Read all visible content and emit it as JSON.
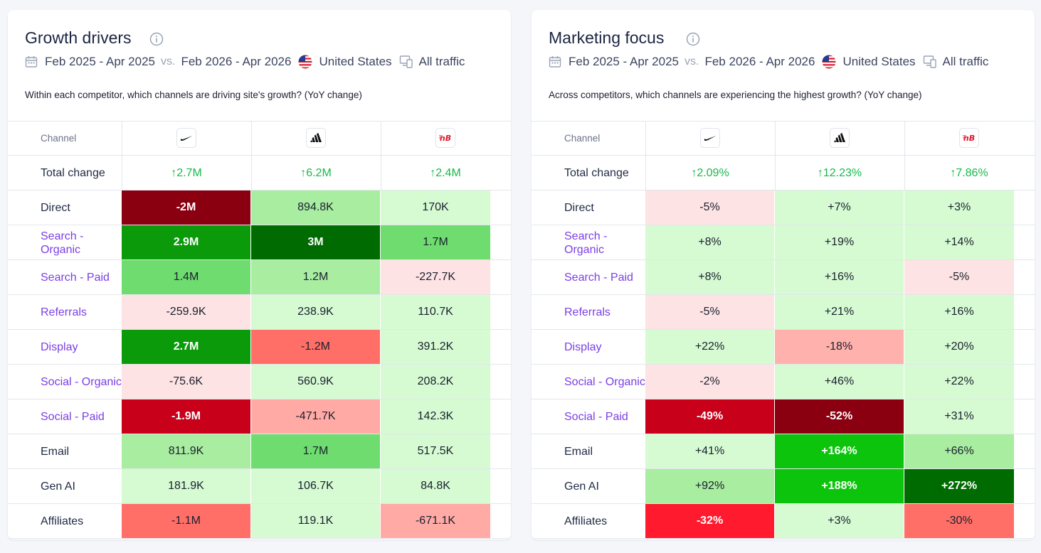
{
  "cards": [
    {
      "title": "Growth drivers",
      "filters": {
        "period_a": "Feb 2025 - Apr 2025",
        "vs": "vs.",
        "period_b": "Feb 2026 - Apr 2026",
        "country": "United States",
        "traffic": "All traffic"
      },
      "subtitle": "Within each competitor, which channels are driving site's growth? (YoY change)",
      "table": {
        "channel_header": "Channel",
        "competitors": [
          "nike-logo",
          "adidas-logo",
          "new-balance-logo"
        ],
        "total_label": "Total change",
        "totals": [
          "↑2.7M",
          "↑6.2M",
          "↑2.4M"
        ],
        "rows": [
          {
            "label": "Direct",
            "link": false,
            "values": [
              "-2M",
              "894.8K",
              "170K"
            ],
            "colors": [
              "#8b0010",
              "#a8eda0",
              "#d6fbd2"
            ]
          },
          {
            "label": "Search - Organic",
            "link": true,
            "values": [
              "2.9M",
              "3M",
              "1.7M"
            ],
            "colors": [
              "#0a9a0a",
              "#006b00",
              "#6edc6e"
            ]
          },
          {
            "label": "Search - Paid",
            "link": true,
            "values": [
              "1.4M",
              "1.2M",
              "-227.7K"
            ],
            "colors": [
              "#6edc6e",
              "#a8eda0",
              "#fde3e3"
            ]
          },
          {
            "label": "Referrals",
            "link": true,
            "values": [
              "-259.9K",
              "238.9K",
              "110.7K"
            ],
            "colors": [
              "#fde3e3",
              "#d6fbd2",
              "#d6fbd2"
            ]
          },
          {
            "label": "Display",
            "link": true,
            "values": [
              "2.7M",
              "-1.2M",
              "391.2K"
            ],
            "colors": [
              "#0a9a0a",
              "#ff6f67",
              "#d6fbd2"
            ]
          },
          {
            "label": "Social - Organic",
            "link": true,
            "values": [
              "-75.6K",
              "560.9K",
              "208.2K"
            ],
            "colors": [
              "#fde3e3",
              "#d6fbd2",
              "#d6fbd2"
            ]
          },
          {
            "label": "Social - Paid",
            "link": true,
            "values": [
              "-1.9M",
              "-471.7K",
              "142.3K"
            ],
            "colors": [
              "#c8001a",
              "#ffaaa5",
              "#d6fbd2"
            ]
          },
          {
            "label": "Email",
            "link": false,
            "values": [
              "811.9K",
              "1.7M",
              "517.5K"
            ],
            "colors": [
              "#a8eda0",
              "#6edc6e",
              "#d6fbd2"
            ]
          },
          {
            "label": "Gen AI",
            "link": false,
            "values": [
              "181.9K",
              "106.7K",
              "84.8K"
            ],
            "colors": [
              "#d6fbd2",
              "#d6fbd2",
              "#d6fbd2"
            ]
          },
          {
            "label": "Affiliates",
            "link": false,
            "values": [
              "-1.1M",
              "119.1K",
              "-671.1K"
            ],
            "colors": [
              "#ff6f67",
              "#d6fbd2",
              "#ffaaa5"
            ]
          }
        ]
      }
    },
    {
      "title": "Marketing focus",
      "filters": {
        "period_a": "Feb 2025 - Apr 2025",
        "vs": "vs.",
        "period_b": "Feb 2026 - Apr 2026",
        "country": "United States",
        "traffic": "All traffic"
      },
      "subtitle": "Across competitors, which channels are experiencing the highest growth? (YoY change)",
      "table": {
        "channel_header": "Channel",
        "competitors": [
          "nike-logo",
          "adidas-logo",
          "new-balance-logo"
        ],
        "total_label": "Total change",
        "totals": [
          "↑2.09%",
          "↑12.23%",
          "↑7.86%"
        ],
        "rows": [
          {
            "label": "Direct",
            "link": false,
            "values": [
              "-5%",
              "+7%",
              "+3%"
            ],
            "colors": [
              "#fde3e3",
              "#d6fbd2",
              "#d6fbd2"
            ]
          },
          {
            "label": "Search - Organic",
            "link": true,
            "values": [
              "+8%",
              "+19%",
              "+14%"
            ],
            "colors": [
              "#d6fbd2",
              "#d6fbd2",
              "#d6fbd2"
            ]
          },
          {
            "label": "Search - Paid",
            "link": true,
            "values": [
              "+8%",
              "+16%",
              "-5%"
            ],
            "colors": [
              "#d6fbd2",
              "#d6fbd2",
              "#fde3e3"
            ]
          },
          {
            "label": "Referrals",
            "link": true,
            "values": [
              "-5%",
              "+21%",
              "+16%"
            ],
            "colors": [
              "#fde3e3",
              "#d6fbd2",
              "#d6fbd2"
            ]
          },
          {
            "label": "Display",
            "link": true,
            "values": [
              "+22%",
              "-18%",
              "+20%"
            ],
            "colors": [
              "#d6fbd2",
              "#ffb2ad",
              "#d6fbd2"
            ]
          },
          {
            "label": "Social - Organic",
            "link": true,
            "values": [
              "-2%",
              "+46%",
              "+22%"
            ],
            "colors": [
              "#fde3e3",
              "#d6fbd2",
              "#d6fbd2"
            ]
          },
          {
            "label": "Social - Paid",
            "link": true,
            "values": [
              "-49%",
              "-52%",
              "+31%"
            ],
            "colors": [
              "#c8001a",
              "#8b0010",
              "#d6fbd2"
            ]
          },
          {
            "label": "Email",
            "link": false,
            "values": [
              "+41%",
              "+164%",
              "+66%"
            ],
            "colors": [
              "#d6fbd2",
              "#0cc40c",
              "#a8eda0"
            ]
          },
          {
            "label": "Gen AI",
            "link": false,
            "values": [
              "+92%",
              "+188%",
              "+272%"
            ],
            "colors": [
              "#a8eda0",
              "#0cc40c",
              "#006b00"
            ]
          },
          {
            "label": "Affiliates",
            "link": false,
            "values": [
              "-32%",
              "+3%",
              "-30%"
            ],
            "colors": [
              "#ff1a2e",
              "#d6fbd2",
              "#ff6f67"
            ]
          }
        ]
      }
    }
  ]
}
